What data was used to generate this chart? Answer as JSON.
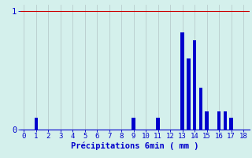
{
  "xlabel": "Précipitations 6min ( mm )",
  "bar_positions": [
    1,
    9,
    11,
    13,
    13.5,
    14,
    14.5,
    15,
    16,
    16.5,
    17
  ],
  "bar_heights": [
    0.1,
    0.1,
    0.1,
    0.82,
    0.6,
    0.75,
    0.35,
    0.15,
    0.15,
    0.15,
    0.1
  ],
  "ylim": [
    0,
    1.05
  ],
  "xlim": [
    -0.3,
    18.5
  ],
  "bar_color": "#0000cc",
  "bg_color": "#d4f0ec",
  "grid_color": "#b8cccc",
  "tick_color": "#0000cc",
  "label_color": "#0000cc",
  "hline_color": "#cc0000",
  "hline_y": 1.0,
  "yticks": [
    0,
    1
  ],
  "xticks": [
    0,
    1,
    2,
    3,
    4,
    5,
    6,
    7,
    8,
    9,
    10,
    11,
    12,
    13,
    14,
    15,
    16,
    17,
    18
  ],
  "bar_width": 0.28,
  "xlabel_fontsize": 7.5,
  "tick_fontsize": 6.5
}
